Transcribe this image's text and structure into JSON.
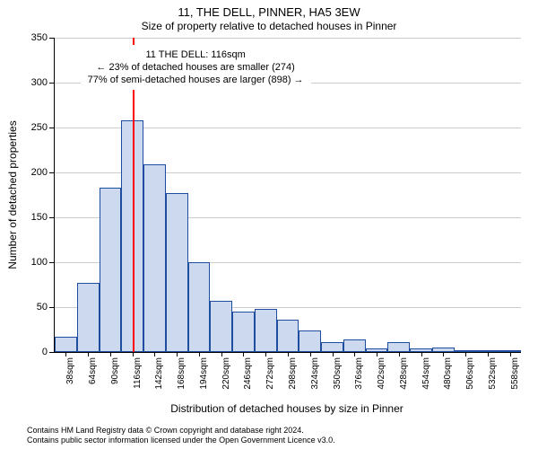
{
  "chart": {
    "type": "histogram",
    "title": "11, THE DELL, PINNER, HA5 3EW",
    "subtitle": "Size of property relative to detached houses in Pinner",
    "x_axis_label": "Distribution of detached houses by size in Pinner",
    "y_axis_label": "Number of detached properties",
    "background_color": "#ffffff",
    "grid_color": "#cccccc",
    "bar_fill": "#ccd9ef",
    "bar_edge": "#1f4ea1",
    "marker_color": "#ff0000",
    "marker_value": 116,
    "x_tick_labels": [
      "38sqm",
      "64sqm",
      "90sqm",
      "116sqm",
      "142sqm",
      "168sqm",
      "194sqm",
      "220sqm",
      "246sqm",
      "272sqm",
      "298sqm",
      "324sqm",
      "350sqm",
      "376sqm",
      "402sqm",
      "428sqm",
      "454sqm",
      "480sqm",
      "506sqm",
      "532sqm",
      "558sqm"
    ],
    "x_min": 25,
    "x_max": 571,
    "bin_width": 26,
    "values": [
      17,
      77,
      183,
      258,
      209,
      177,
      100,
      57,
      45,
      48,
      36,
      24,
      11,
      14,
      4,
      11,
      4,
      5,
      2,
      2,
      1
    ],
    "ylim": [
      0,
      350
    ],
    "y_ticks": [
      0,
      50,
      100,
      150,
      200,
      250,
      300,
      350
    ],
    "bar_width_ratio": 1.0,
    "title_fontsize": 13,
    "subtitle_fontsize": 12,
    "axis_label_fontsize": 12,
    "tick_fontsize": 11,
    "annotation": {
      "lines": [
        "11 THE DELL: 116sqm",
        "← 23% of detached houses are smaller (274)",
        "77% of semi-detached houses are larger (898) →"
      ],
      "x_center_value": 190,
      "y_value": 317
    }
  },
  "footer": {
    "line1": "Contains HM Land Registry data © Crown copyright and database right 2024.",
    "line2": "Contains public sector information licensed under the Open Government Licence v3.0."
  }
}
